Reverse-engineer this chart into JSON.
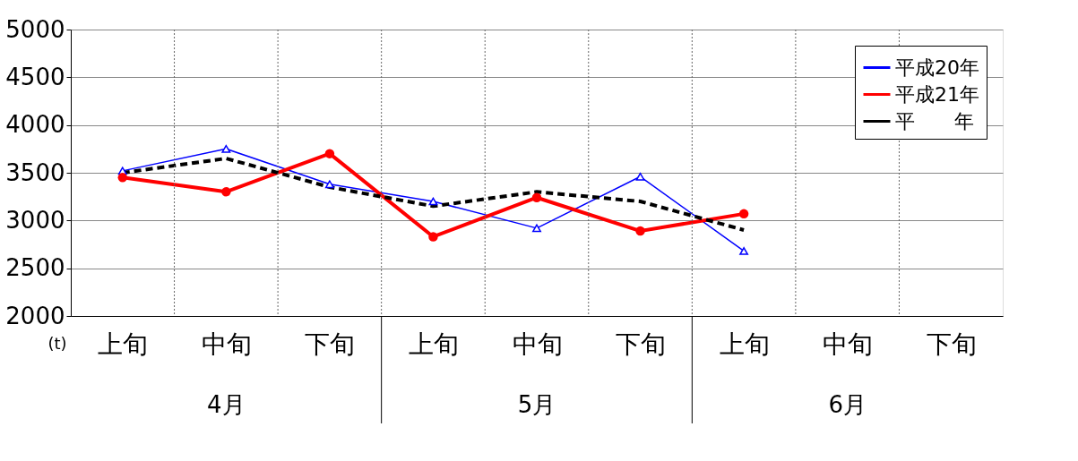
{
  "chart_data": {
    "type": "line",
    "ylabel": "(t)",
    "categories": [
      "上旬",
      "中旬",
      "下旬",
      "上旬",
      "中旬",
      "下旬",
      "上旬",
      "中旬",
      "下旬"
    ],
    "annotations": [
      "4月",
      "5月",
      "6月"
    ],
    "ylim": [
      2000,
      5000
    ],
    "yticks": [
      2000,
      2500,
      3000,
      3500,
      4000,
      4500,
      5000
    ],
    "grid": true,
    "legend": "top right",
    "series": [
      {
        "name": "平成20年",
        "color": "#0000ff",
        "marker": "triangle",
        "line_style": "solid",
        "values": [
          3520,
          3750,
          3380,
          3200,
          2920,
          3460,
          2680,
          null,
          null
        ]
      },
      {
        "name": "平成21年",
        "color": "#ff0000",
        "marker": "circle",
        "line_style": "solid",
        "values": [
          3450,
          3300,
          3700,
          2830,
          3240,
          2890,
          3070,
          null,
          null
        ]
      },
      {
        "name": "平　　年",
        "color": "#000000",
        "marker": "none",
        "line_style": "dashed",
        "values": [
          3500,
          3650,
          3350,
          3150,
          3300,
          3200,
          2900,
          null,
          null
        ]
      }
    ]
  }
}
